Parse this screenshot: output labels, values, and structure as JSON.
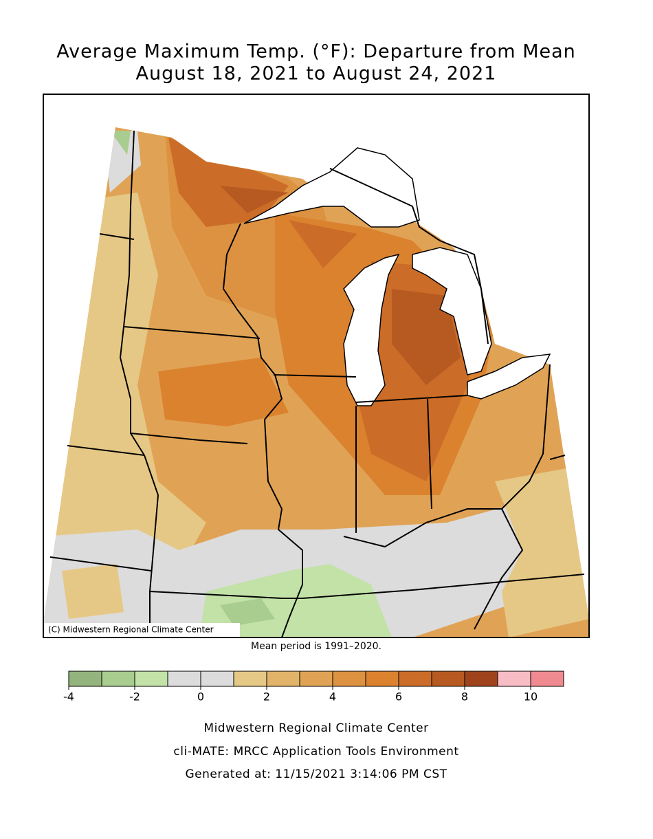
{
  "title": [
    "Average Maximum Temp. (°F): Departure from Mean",
    "August 18, 2021 to August 24, 2021"
  ],
  "map": {
    "credit": "(C) Midwestern Regional Climate Center"
  },
  "note": "Mean period is 1991–2020.",
  "legend": {
    "bins": [
      -4,
      -3,
      -2,
      -1,
      0,
      1,
      2,
      3,
      4,
      5,
      6,
      7,
      8,
      9,
      10,
      11
    ],
    "colors": [
      "#93b57d",
      "#a9cc8f",
      "#c2e2a8",
      "#dcdcdc",
      "#dcdcdc",
      "#e6c886",
      "#e2b46a",
      "#e0a356",
      "#dc9240",
      "#db822f",
      "#cb6d28",
      "#b75a22",
      "#9e431c",
      "#f7bcc4",
      "#ef8a90"
    ],
    "ticks": [
      -4,
      -2,
      0,
      2,
      4,
      6,
      8,
      10
    ]
  },
  "footer": [
    "Midwestern Regional Climate Center",
    "cli-MATE: MRCC Application Tools Environment",
    "Generated at: 11/15/2021 3:14:06 PM CST"
  ]
}
